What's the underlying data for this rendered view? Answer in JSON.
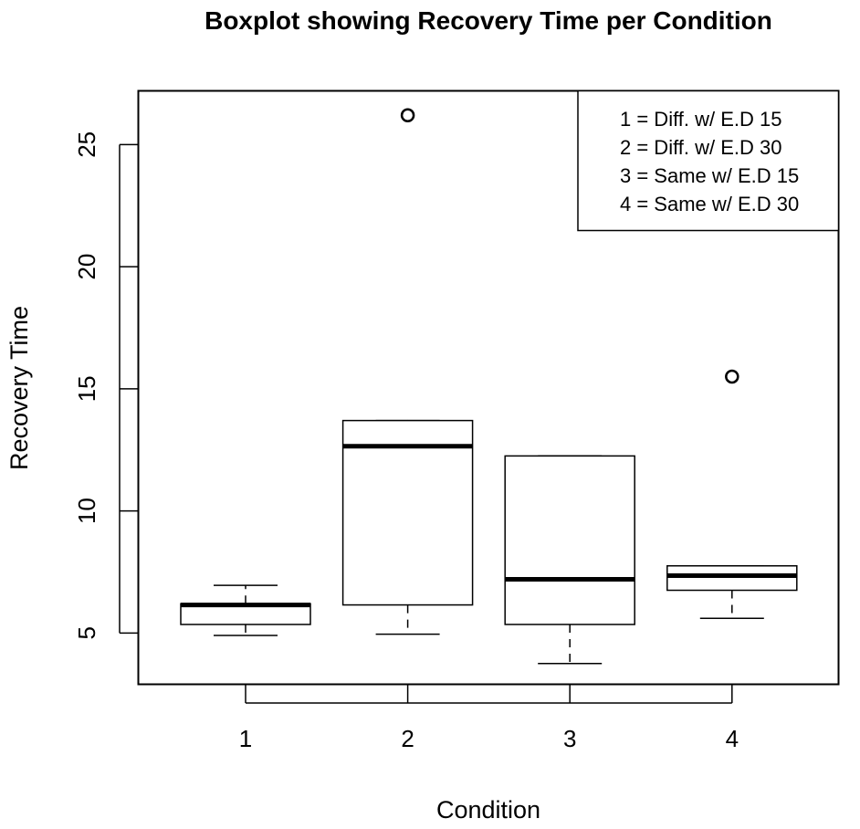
{
  "chart_data": {
    "type": "boxplot",
    "title": "Boxplot showing Recovery Time per Condition",
    "xlabel": "Condition",
    "ylabel": "Recovery Time",
    "categories": [
      "1",
      "2",
      "3",
      "4"
    ],
    "ylim": [
      2.9,
      27.2
    ],
    "yticks": [
      5,
      10,
      15,
      20,
      25
    ],
    "ytick_labels": [
      "5",
      "10",
      "15",
      "20",
      "25"
    ],
    "grid": false,
    "legend_position": "top-right",
    "legend": [
      "1 = Diff. w/ E.D 15",
      "2 = Diff. w/ E.D 30",
      "3 = Same w/ E.D 15",
      "4 = Same w/ E.D 30"
    ],
    "boxes": [
      {
        "category": "1",
        "whisker_low": 4.9,
        "q1": 5.35,
        "median": 6.15,
        "q3": 6.2,
        "whisker_high": 6.95,
        "outliers": []
      },
      {
        "category": "2",
        "whisker_low": 4.95,
        "q1": 6.15,
        "median": 12.65,
        "q3": 13.7,
        "whisker_high": 13.7,
        "outliers": [
          26.2
        ]
      },
      {
        "category": "3",
        "whisker_low": 3.75,
        "q1": 5.35,
        "median": 7.2,
        "q3": 12.25,
        "whisker_high": 12.25,
        "outliers": []
      },
      {
        "category": "4",
        "whisker_low": 5.6,
        "q1": 6.75,
        "median": 7.35,
        "q3": 7.75,
        "whisker_high": 7.75,
        "outliers": [
          15.5
        ]
      }
    ]
  }
}
